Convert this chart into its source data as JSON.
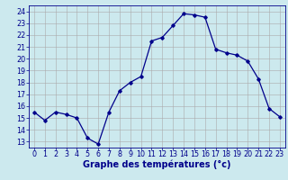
{
  "x": [
    0,
    1,
    2,
    3,
    4,
    5,
    6,
    7,
    8,
    9,
    10,
    11,
    12,
    13,
    14,
    15,
    16,
    17,
    18,
    19,
    20,
    21,
    22,
    23
  ],
  "y": [
    15.5,
    14.8,
    15.5,
    15.3,
    15.0,
    13.3,
    12.8,
    15.5,
    17.3,
    18.0,
    18.5,
    21.5,
    21.8,
    22.8,
    23.8,
    23.7,
    23.5,
    20.8,
    20.5,
    20.3,
    19.8,
    18.3,
    15.8,
    15.1
  ],
  "xlabel": "Graphe des températures (°c)",
  "xlim": [
    -0.5,
    23.5
  ],
  "ylim": [
    12.5,
    24.5
  ],
  "yticks": [
    13,
    14,
    15,
    16,
    17,
    18,
    19,
    20,
    21,
    22,
    23,
    24
  ],
  "xticks": [
    0,
    1,
    2,
    3,
    4,
    5,
    6,
    7,
    8,
    9,
    10,
    11,
    12,
    13,
    14,
    15,
    16,
    17,
    18,
    19,
    20,
    21,
    22,
    23
  ],
  "line_color": "#00008B",
  "marker": "D",
  "marker_size": 1.8,
  "bg_color": "#cce9ee",
  "grid_color": "#aaaaaa",
  "axis_color": "#00008B",
  "label_color": "#00008B",
  "xlabel_fontsize": 7.0,
  "tick_fontsize": 5.8,
  "line_width": 0.9
}
